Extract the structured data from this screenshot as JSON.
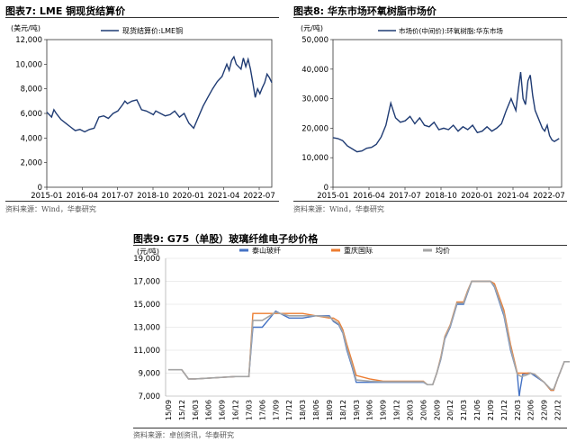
{
  "panels": {
    "p7": {
      "title": "图表7:  LME 铜现货结算价",
      "source": "资料来源：Wind，华泰研究"
    },
    "p8": {
      "title": "图表8:  华东市场环氧树脂市场价",
      "source": "资料来源：Wind，华泰研究"
    },
    "p9": {
      "title": "图表9:  G75（单股）玻璃纤维电子纱价格",
      "source": "资料来源：卓创资讯，华泰研究"
    }
  },
  "colors": {
    "navy": "#1f3b73",
    "blue": "#4472c4",
    "orange": "#ed7d31",
    "gray": "#a5a5a5"
  },
  "chart_data": [
    {
      "type": "line",
      "unit_label": "(美元/吨)",
      "ylim": [
        0,
        12000
      ],
      "y_ticks": [
        "0",
        "2,000",
        "4,000",
        "6,000",
        "8,000",
        "10,000",
        "12,000"
      ],
      "y_tick_values": [
        0,
        2000,
        4000,
        6000,
        8000,
        10000,
        12000
      ],
      "x_ticks": [
        "2015-01",
        "2016-04",
        "2017-07",
        "2018-10",
        "2020-01",
        "2021-04",
        "2022-07"
      ],
      "x_range": [
        0,
        95
      ],
      "series": [
        {
          "name": "现货结算价:LME铜",
          "x": [
            0,
            2,
            3,
            4,
            6,
            8,
            10,
            12,
            14,
            16,
            18,
            20,
            22,
            24,
            26,
            28,
            30,
            32,
            33,
            34,
            36,
            38,
            40,
            42,
            44,
            45,
            46,
            48,
            50,
            52,
            54,
            56,
            58,
            60,
            62,
            64,
            66,
            68,
            70,
            72,
            74,
            76,
            77,
            78,
            79,
            80,
            82,
            83,
            84,
            85,
            86,
            87,
            88,
            89,
            90,
            91,
            92,
            93,
            94,
            95
          ],
          "values": [
            6100,
            5700,
            6300,
            6000,
            5500,
            5200,
            4900,
            4600,
            4700,
            4500,
            4700,
            4800,
            5700,
            5800,
            5600,
            6000,
            6200,
            6700,
            7000,
            6800,
            7000,
            7100,
            6300,
            6200,
            6000,
            5900,
            6200,
            6000,
            5800,
            5900,
            6200,
            5700,
            6000,
            5200,
            4800,
            5700,
            6600,
            7300,
            8000,
            8600,
            9000,
            10000,
            9500,
            10300,
            10600,
            10000,
            9600,
            10500,
            9800,
            10400,
            9600,
            8500,
            7300,
            8000,
            7600,
            8100,
            8500,
            9200,
            8900,
            8500
          ]
        }
      ]
    },
    {
      "type": "line",
      "unit_label": "(元/吨)",
      "ylim": [
        0,
        50000
      ],
      "y_ticks": [
        "0",
        "10,000",
        "20,000",
        "30,000",
        "40,000",
        "50,000"
      ],
      "y_tick_values": [
        0,
        10000,
        20000,
        30000,
        40000,
        50000
      ],
      "x_ticks": [
        "2015-01",
        "2016-04",
        "2017-07",
        "2018-10",
        "2020-01",
        "2021-04",
        "2022-07"
      ],
      "x_range": [
        0,
        95
      ],
      "series": [
        {
          "name": "市场价(中间价):环氧树脂:华东市场",
          "x": [
            0,
            2,
            4,
            6,
            8,
            10,
            12,
            14,
            16,
            18,
            20,
            22,
            24,
            26,
            28,
            30,
            32,
            34,
            36,
            38,
            40,
            42,
            44,
            46,
            48,
            50,
            52,
            54,
            56,
            58,
            60,
            62,
            64,
            66,
            68,
            70,
            72,
            74,
            75,
            76,
            77,
            78,
            79,
            80,
            81,
            82,
            83,
            84,
            85,
            86,
            87,
            88,
            89,
            90,
            91,
            92,
            93,
            94
          ],
          "values": [
            16800,
            16500,
            15800,
            14000,
            13000,
            12000,
            12300,
            13200,
            13500,
            14500,
            17000,
            21000,
            28500,
            23500,
            22000,
            22500,
            24000,
            21500,
            23500,
            21000,
            20500,
            22000,
            19500,
            20000,
            19500,
            21000,
            19000,
            20500,
            19500,
            21000,
            18500,
            19000,
            20500,
            19000,
            20000,
            21500,
            26000,
            30000,
            28000,
            26000,
            33000,
            39000,
            30000,
            28000,
            36000,
            38000,
            31000,
            26000,
            24000,
            22000,
            20000,
            19000,
            21000,
            17500,
            16000,
            15500,
            16000,
            16500
          ]
        }
      ]
    },
    {
      "type": "line",
      "unit_label": "(元/吨)",
      "ylim": [
        7000,
        19000
      ],
      "y_ticks": [
        "7,000",
        "9,000",
        "11,000",
        "13,000",
        "15,000",
        "17,000",
        "19,000"
      ],
      "y_tick_values": [
        7000,
        9000,
        11000,
        13000,
        15000,
        17000,
        19000
      ],
      "x_ticks": [
        "15/09",
        "15/12",
        "16/03",
        "16/06",
        "16/09",
        "16/12",
        "17/03",
        "17/06",
        "17/09",
        "17/12",
        "18/03",
        "18/06",
        "18/09",
        "18/12",
        "19/03",
        "19/06",
        "19/09",
        "19/12",
        "20/03",
        "20/06",
        "20/09",
        "20/12",
        "21/03",
        "21/06",
        "21/09",
        "21/12",
        "22/03",
        "22/06",
        "22/09",
        "22/12"
      ],
      "series": [
        {
          "name": "泰山玻纤",
          "x": [
            0,
            0.5,
            1,
            1.5,
            2,
            5,
            5.3,
            6,
            6.3,
            7,
            8,
            9,
            9.5,
            10,
            11,
            12,
            12.3,
            12.7,
            13,
            13.3,
            13.7,
            14,
            15,
            16,
            17,
            18,
            18.5,
            19,
            19.3,
            19.7,
            20,
            20.3,
            20.6,
            21,
            21.5,
            22,
            22.3,
            22.6,
            23,
            23.3,
            24,
            24.3,
            25,
            25.5,
            26,
            26.1,
            26.15,
            26.2,
            26.4,
            26.8,
            27,
            28,
            28.5,
            28.7,
            29,
            29.5,
            29.9
          ],
          "values": [
            9300,
            9300,
            9300,
            8500,
            8500,
            8700,
            8700,
            8700,
            13000,
            13000,
            14400,
            13800,
            13800,
            13800,
            14000,
            14000,
            13500,
            13200,
            12500,
            11000,
            9500,
            8200,
            8200,
            8200,
            8200,
            8200,
            8200,
            8200,
            8000,
            8000,
            9000,
            10200,
            12000,
            13000,
            15000,
            15000,
            16000,
            17000,
            17000,
            17000,
            17000,
            16500,
            14000,
            11000,
            8900,
            7500,
            7000,
            7500,
            8900,
            9000,
            9000,
            8200,
            7500,
            7500,
            8500,
            10000,
            10000
          ]
        },
        {
          "name": "重庆国际",
          "x": [
            0,
            0.5,
            1,
            1.5,
            2,
            5,
            5.3,
            6,
            6.3,
            7,
            8,
            9,
            9.5,
            10,
            11,
            12,
            12.3,
            12.7,
            13,
            13.3,
            13.7,
            14,
            15,
            16,
            17,
            18,
            18.5,
            19,
            19.3,
            19.7,
            20,
            20.3,
            20.6,
            21,
            21.5,
            22,
            22.3,
            22.6,
            23,
            23.3,
            24,
            24.3,
            25,
            25.5,
            26,
            26.3,
            26.6,
            27,
            27.3,
            28,
            28.5,
            28.7,
            29,
            29.5,
            29.9
          ],
          "values": [
            9300,
            9300,
            9300,
            8500,
            8500,
            8700,
            8700,
            8700,
            14200,
            14200,
            14200,
            14200,
            14200,
            14200,
            14000,
            13800,
            13800,
            13500,
            12800,
            11500,
            10000,
            8800,
            8500,
            8300,
            8300,
            8300,
            8300,
            8300,
            8000,
            8000,
            9000,
            10400,
            12200,
            13200,
            15200,
            15200,
            16200,
            17000,
            17000,
            17000,
            17000,
            16800,
            14500,
            11500,
            9000,
            9000,
            9000,
            9000,
            8900,
            8200,
            7500,
            7500,
            8500,
            10000,
            10000
          ]
        },
        {
          "name": "均价",
          "x": [
            0,
            0.5,
            1,
            1.5,
            2,
            5,
            5.3,
            6,
            6.3,
            7,
            8,
            9,
            9.5,
            10,
            11,
            12,
            12.3,
            12.7,
            13,
            13.3,
            13.7,
            14,
            15,
            16,
            17,
            18,
            18.5,
            19,
            19.3,
            19.7,
            20,
            20.3,
            20.6,
            21,
            21.5,
            22,
            22.3,
            22.6,
            23,
            23.3,
            24,
            24.3,
            25,
            25.5,
            26,
            26.3,
            26.6,
            27,
            27.3,
            28,
            28.5,
            28.7,
            29,
            29.5,
            29.9
          ],
          "values": [
            9300,
            9300,
            9300,
            8500,
            8500,
            8700,
            8700,
            8700,
            13600,
            13600,
            14300,
            14000,
            14000,
            14000,
            14000,
            13900,
            13600,
            13300,
            12600,
            11200,
            9700,
            8400,
            8300,
            8250,
            8250,
            8250,
            8250,
            8250,
            8000,
            8000,
            9000,
            10300,
            12100,
            13100,
            15100,
            15100,
            16100,
            17000,
            17000,
            17000,
            17000,
            16600,
            14200,
            11200,
            8900,
            8700,
            8800,
            9000,
            8900,
            8200,
            7600,
            7600,
            8500,
            10000,
            10000
          ]
        }
      ]
    }
  ]
}
